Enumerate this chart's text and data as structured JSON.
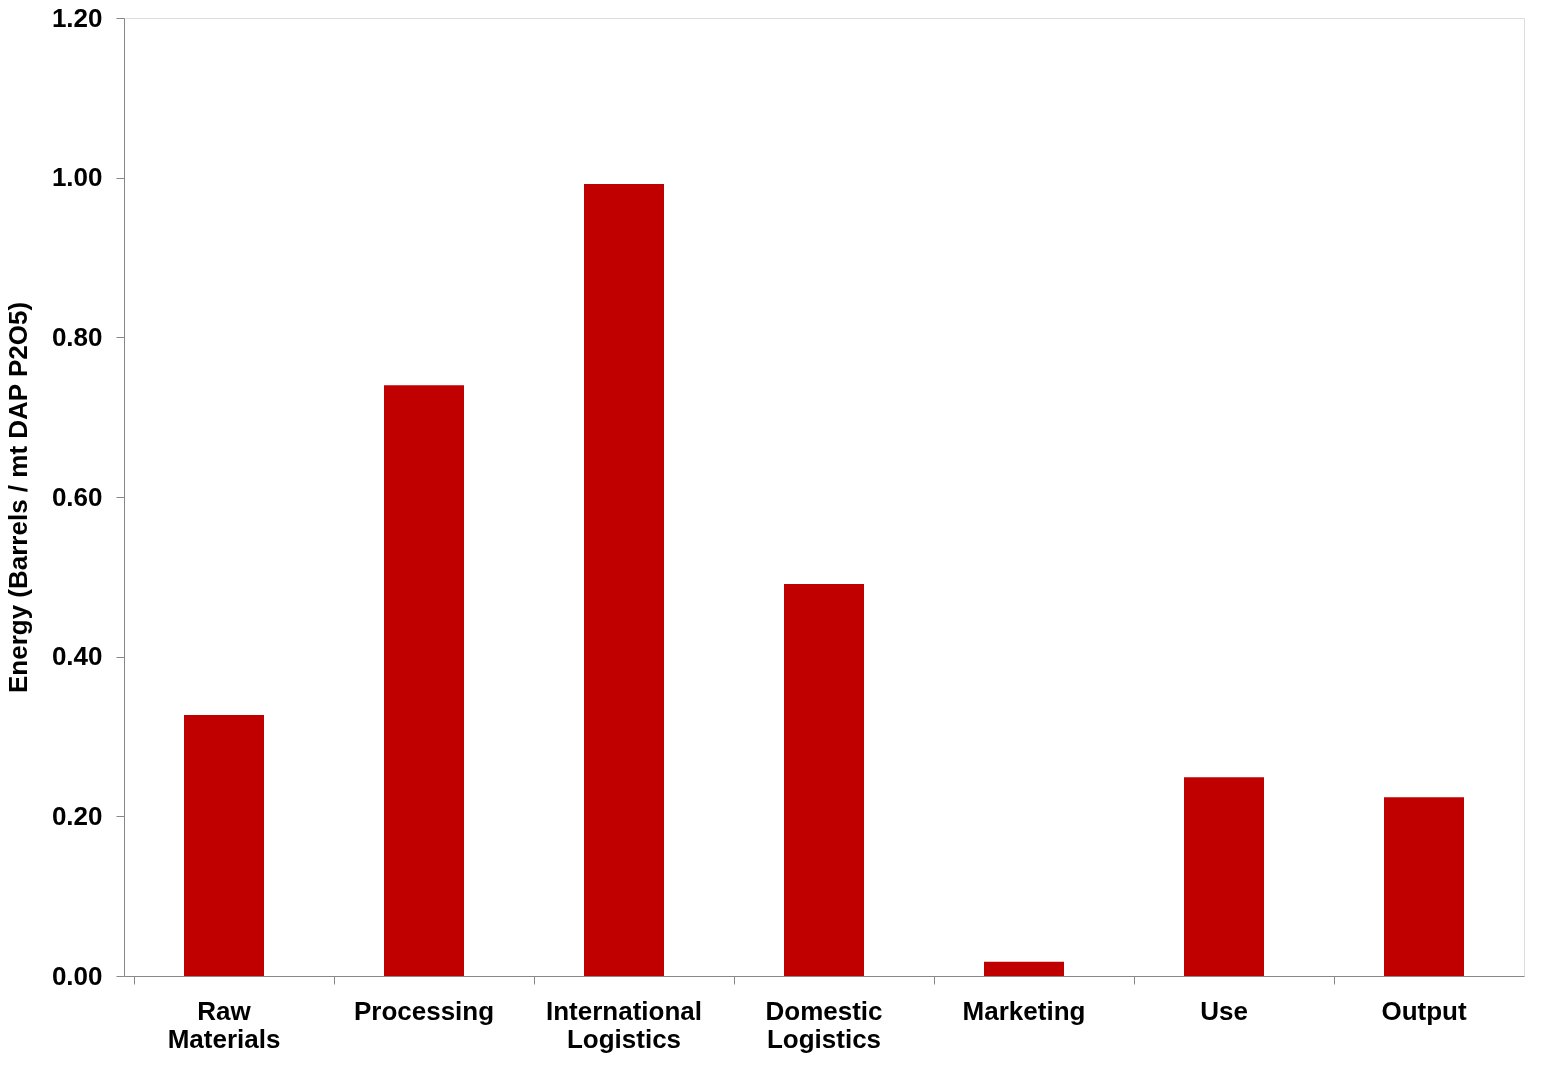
{
  "chart_data": {
    "type": "bar",
    "ylabel": "Energy  (Barrels / mt DAP P2O5)",
    "categories": [
      "Raw Materials",
      "Processing",
      "International Logistics",
      "Domestic Logistics",
      "Marketing",
      "Use",
      "Output"
    ],
    "values": [
      0.327,
      0.74,
      0.992,
      0.491,
      0.018,
      0.249,
      0.224
    ],
    "color": "#c00000",
    "ylim": [
      0,
      1.2
    ],
    "yticks": [
      {
        "value": 0,
        "label": "0.00"
      },
      {
        "value": 0.2,
        "label": "0.20"
      },
      {
        "value": 0.4,
        "label": "0.40"
      },
      {
        "value": 0.6,
        "label": "0.60"
      },
      {
        "value": 0.8,
        "label": "0.80"
      },
      {
        "value": 1.0,
        "label": "1.00"
      },
      {
        "value": 1.2,
        "label": "1.20"
      }
    ],
    "grid": false
  }
}
